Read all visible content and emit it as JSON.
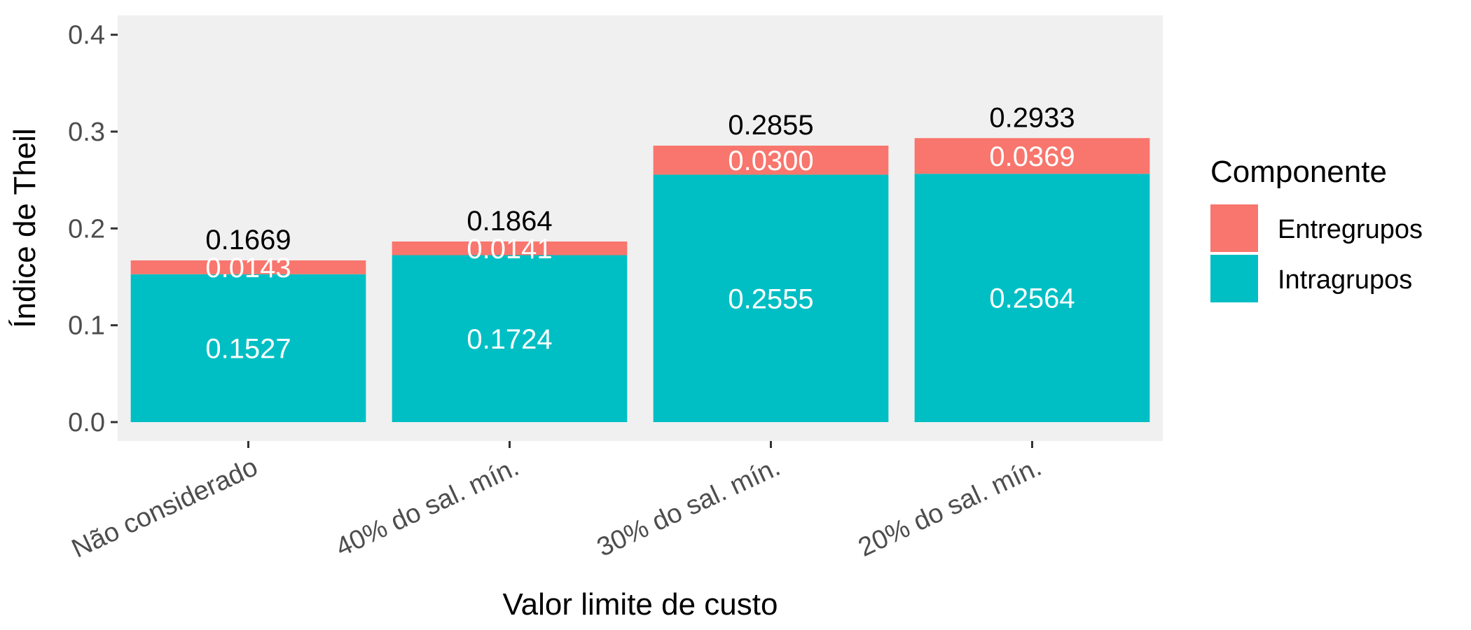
{
  "chart_data": {
    "type": "bar",
    "stacked": true,
    "categories": [
      "Não considerado",
      "40% do sal. mín.",
      "30% do sal. mín.",
      "20% do sal. mín."
    ],
    "series": [
      {
        "name": "Intragrupos",
        "values": [
          0.1527,
          0.1724,
          0.2555,
          0.2564
        ],
        "labels": [
          "0.1527",
          "0.1724",
          "0.2555",
          "0.2564"
        ],
        "color": "#00BFC4"
      },
      {
        "name": "Entregrupos",
        "values": [
          0.0143,
          0.0141,
          0.03,
          0.0369
        ],
        "labels": [
          "0.0143",
          "0.0141",
          "0.0300",
          "0.0369"
        ],
        "color": "#F8766D"
      }
    ],
    "totals": [
      0.1669,
      0.1864,
      0.2855,
      0.2933
    ],
    "total_labels": [
      "0.1669",
      "0.1864",
      "0.2855",
      "0.2933"
    ],
    "xlabel": "Valor limite de custo",
    "ylabel": "Índice de Theil",
    "ylim": [
      0,
      0.42
    ],
    "yticks": [
      0.0,
      0.1,
      0.2,
      0.3,
      0.4
    ],
    "ytick_labels": [
      "0.0",
      "0.1",
      "0.2",
      "0.3",
      "0.4"
    ],
    "grid": false,
    "panel_background": "#F0F0F0",
    "legend": {
      "title": "Componente",
      "placement": "right",
      "entries": [
        {
          "label": "Entregrupos",
          "color": "#F8766D"
        },
        {
          "label": "Intragrupos",
          "color": "#00BFC4"
        }
      ]
    }
  }
}
